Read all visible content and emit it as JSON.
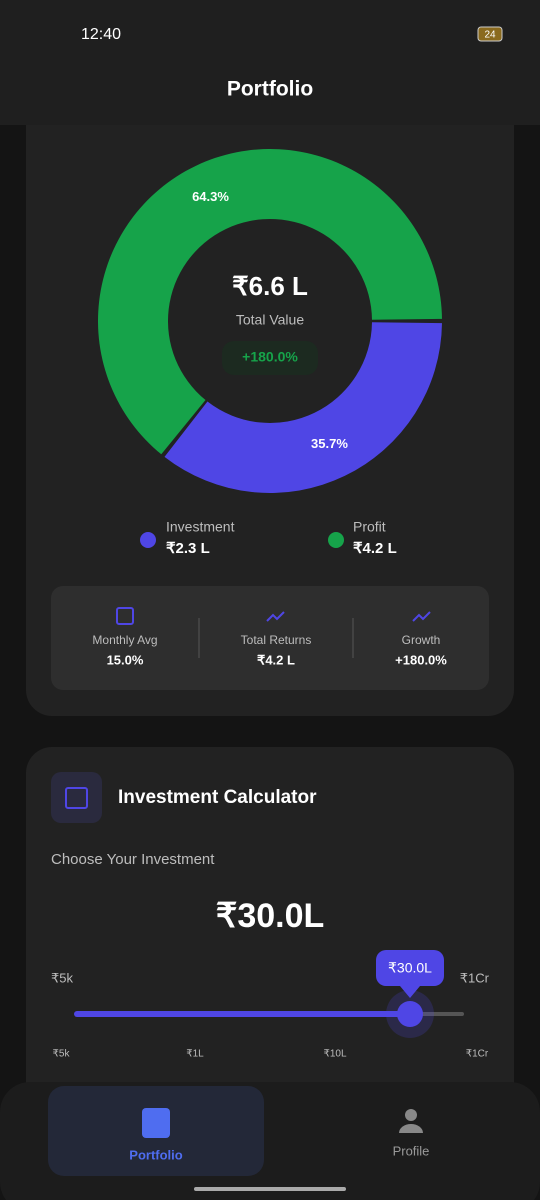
{
  "status_bar": {
    "time": "12:40",
    "battery": "24"
  },
  "header": {
    "title": "Portfolio"
  },
  "donut": {
    "type": "pie",
    "categories": [
      "Investment",
      "Profit"
    ],
    "values": [
      35.7,
      64.3
    ],
    "value_labels": [
      "35.7%",
      "64.3%"
    ],
    "colors": [
      "#4f46e5",
      "#16a34a"
    ],
    "center_value": "₹6.6 L",
    "center_label": "Total Value",
    "center_badge": "+180.0%"
  },
  "legend": [
    {
      "label": "Investment",
      "amount": "₹2.3 L"
    },
    {
      "label": "Profit",
      "amount": "₹4.2 L"
    }
  ],
  "stats": [
    {
      "label": "Monthly Avg",
      "value": "15.0%"
    },
    {
      "label": "Total Returns",
      "value": "₹4.2 L"
    },
    {
      "label": "Growth",
      "value": "+180.0%"
    }
  ],
  "calculator": {
    "title": "Investment Calculator",
    "prompt": "Choose Your Investment",
    "amount": "₹30.0L",
    "bubble": "₹30.0L",
    "min_label": "₹5k",
    "max_label": "₹1Cr",
    "scale_labels": [
      "₹5k",
      "₹1L",
      "₹10L",
      "₹1Cr"
    ]
  },
  "nav": [
    {
      "label": "Portfolio"
    },
    {
      "label": "Profile"
    }
  ]
}
